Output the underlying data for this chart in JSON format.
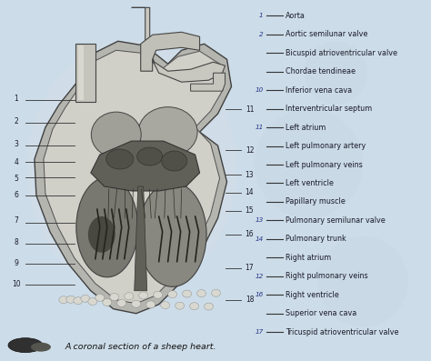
{
  "bg_color": "#ccdce8",
  "title": "A coronal section of a sheep heart.",
  "left_numbers": [
    "1",
    "2",
    "3",
    "4",
    "5",
    "6",
    "7",
    "8",
    "9",
    "10"
  ],
  "right_numbers": [
    "11",
    "12",
    "13",
    "14",
    "15",
    "16",
    "17",
    "18"
  ],
  "answer_list": [
    [
      "1",
      "Aorta"
    ],
    [
      "2",
      "Aortic semilunar valve"
    ],
    [
      "",
      "Bicuspid atrioventricular valve"
    ],
    [
      "",
      "Chordae tendineae"
    ],
    [
      "10",
      "Inferior vena cava"
    ],
    [
      "",
      "Interventricular septum"
    ],
    [
      "11",
      "Left atrium"
    ],
    [
      "",
      "Left pulmonary artery"
    ],
    [
      "",
      "Left pulmonary veins"
    ],
    [
      "",
      "Left ventricle"
    ],
    [
      "",
      "Papillary muscle"
    ],
    [
      "13",
      "Pulmonary semilunar valve"
    ],
    [
      "14",
      "Pulmonary trunk"
    ],
    [
      "",
      "Right atrium"
    ],
    [
      "12",
      "Right pulmonary veins"
    ],
    [
      "16",
      "Right ventricle"
    ],
    [
      "",
      "Superior vena cava"
    ],
    [
      "17",
      "Tricuspid atrioventricular valve"
    ]
  ],
  "heart_bg": "#c5d5e0",
  "heart_outer": "#b8b8b4",
  "heart_outer_edge": "#555550",
  "chamber_dark": "#707068",
  "chamber_mid": "#909088",
  "vessel_color": "#c0c0b8",
  "text_color": "#1a1a2a",
  "line_color": "#333333",
  "label_fontsize": 5.8,
  "number_fontsize": 5.5
}
